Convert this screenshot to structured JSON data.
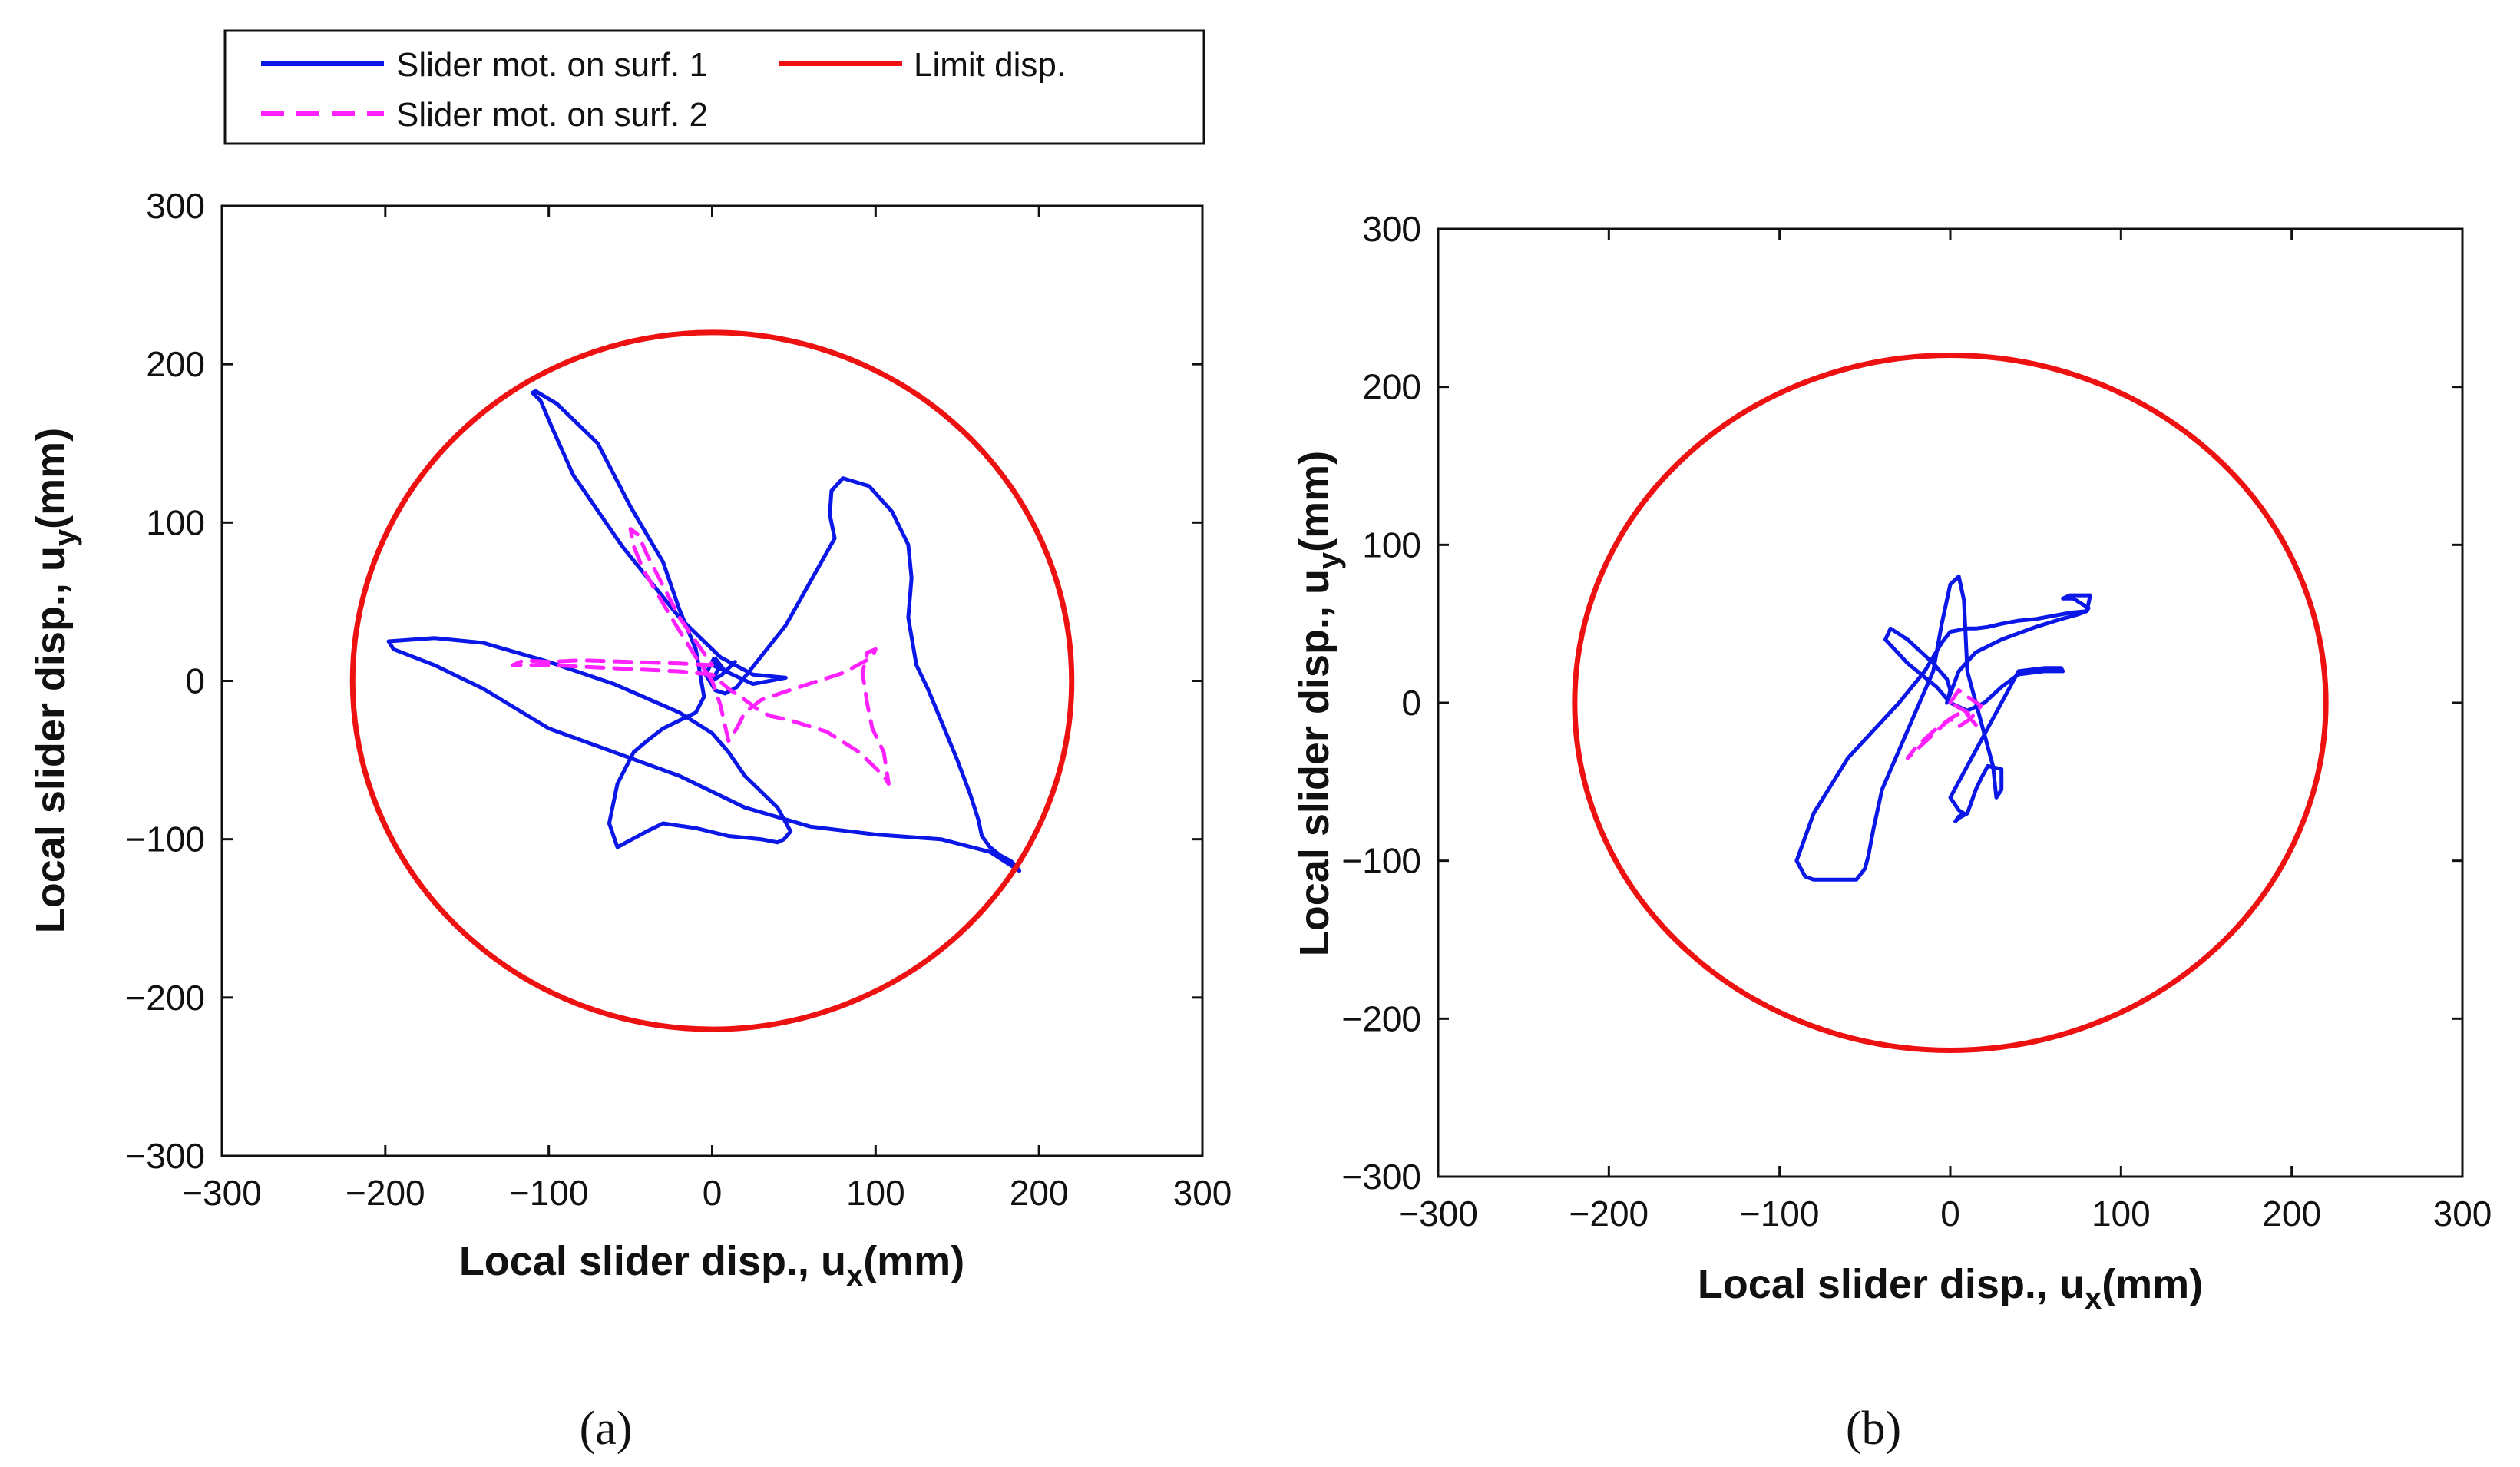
{
  "chart_data": [
    {
      "type": "line",
      "panel_label": "(a)",
      "xlabel": "Local slider disp., u",
      "xlabel_sub": "x",
      "xlabel_unit": "(mm)",
      "ylabel": "Local slider disp., u",
      "ylabel_sub": "y",
      "ylabel_unit": "(mm)",
      "xlim": [
        -300,
        300
      ],
      "ylim": [
        -300,
        300
      ],
      "xticks": [
        -300,
        -200,
        -100,
        0,
        100,
        200,
        300
      ],
      "yticks": [
        -300,
        -200,
        -100,
        0,
        100,
        200,
        300
      ],
      "xtick_labels": [
        "−300",
        "−200",
        "−100",
        "0",
        "100",
        "200",
        "300"
      ],
      "ytick_labels": [
        "−300",
        "−200",
        "−100",
        "0",
        "100",
        "200",
        "300"
      ],
      "grid": false,
      "legend": {
        "placement": "top, above panel (a)",
        "entries": [
          "Slider mot. on surf. 1",
          "Limit disp.",
          "Slider mot. on surf. 2"
        ]
      },
      "series": [
        {
          "name": "Slider mot. on surf. 1",
          "color": "#0a17e6",
          "style": "solid",
          "x": [
            0,
            4,
            1,
            -4,
            2,
            8,
            15,
            45,
            75,
            72,
            73,
            80,
            96,
            110,
            120,
            122,
            120,
            125,
            132,
            140,
            150,
            158,
            163,
            165,
            170,
            176,
            183,
            186,
            188,
            185,
            170,
            140,
            100,
            60,
            20,
            -20,
            -60,
            -100,
            -140,
            -170,
            -195,
            -198,
            -170,
            -140,
            -100,
            -60,
            -20,
            0,
            10,
            20,
            40,
            48,
            44,
            40,
            30,
            10,
            -10,
            -30,
            -40,
            -58,
            -63,
            -58,
            -48,
            -40,
            -30,
            -20,
            -10,
            -5,
            -10,
            -20,
            -30,
            -50,
            -70,
            -95,
            -108,
            -110,
            -105,
            -98,
            -85,
            -55,
            -20,
            5,
            25,
            45,
            25,
            0,
            2,
            8,
            14,
            6,
            0
          ],
          "y": [
            0,
            8,
            14,
            4,
            -6,
            -8,
            -4,
            35,
            90,
            105,
            120,
            128,
            123,
            107,
            86,
            65,
            40,
            10,
            -5,
            -25,
            -50,
            -72,
            -88,
            -98,
            -105,
            -110,
            -114,
            -117,
            -120,
            -118,
            -108,
            -100,
            -97,
            -92,
            -80,
            -60,
            -45,
            -30,
            -5,
            10,
            20,
            25,
            27,
            24,
            12,
            -2,
            -20,
            -33,
            -45,
            -60,
            -80,
            -95,
            -100,
            -102,
            -100,
            -98,
            -93,
            -90,
            -95,
            -105,
            -90,
            -65,
            -45,
            -38,
            -30,
            -25,
            -20,
            -10,
            20,
            45,
            75,
            110,
            150,
            175,
            183,
            182,
            177,
            160,
            130,
            85,
            40,
            15,
            4,
            2,
            -2,
            10,
            14,
            6,
            12,
            4,
            0
          ]
        },
        {
          "name": "Slider mot. on surf. 2",
          "color": "#ff22ff",
          "style": "dashed",
          "x": [
            0,
            -10,
            -25,
            -42,
            -48,
            -50,
            -45,
            -40,
            -30,
            -20,
            -10,
            0,
            -20,
            -50,
            -80,
            -100,
            -115,
            -122,
            -100,
            -60,
            -20,
            0,
            10,
            20,
            28,
            35,
            48,
            70,
            90,
            100,
            105,
            108,
            105,
            98,
            95,
            92,
            95,
            100,
            98,
            80,
            50,
            30,
            20,
            15,
            10,
            5,
            0
          ],
          "y": [
            0,
            15,
            40,
            70,
            85,
            96,
            92,
            80,
            60,
            40,
            25,
            10,
            11,
            12,
            13,
            12,
            13,
            10,
            10,
            8,
            6,
            4,
            -5,
            -12,
            -18,
            -22,
            -25,
            -32,
            -45,
            -55,
            -60,
            -65,
            -45,
            -30,
            -15,
            5,
            18,
            20,
            15,
            5,
            -5,
            -12,
            -20,
            -30,
            -38,
            -15,
            0
          ]
        },
        {
          "name": "Limit disp.",
          "color": "#ee1111",
          "style": "solid",
          "radius": 220,
          "shape": "circle"
        }
      ]
    },
    {
      "type": "line",
      "panel_label": "(b)",
      "xlabel": "Local slider disp., u",
      "xlabel_sub": "x",
      "xlabel_unit": "(mm)",
      "ylabel": "Local slider disp., u",
      "ylabel_sub": "y",
      "ylabel_unit": "(mm)",
      "xlim": [
        -300,
        300
      ],
      "ylim": [
        -300,
        300
      ],
      "xticks": [
        -300,
        -200,
        -100,
        0,
        100,
        200,
        300
      ],
      "yticks": [
        -300,
        -200,
        -100,
        0,
        100,
        200,
        300
      ],
      "xtick_labels": [
        "−300",
        "−200",
        "−100",
        "0",
        "100",
        "200",
        "300"
      ],
      "ytick_labels": [
        "−300",
        "−200",
        "−100",
        "0",
        "100",
        "200",
        "300"
      ],
      "grid": false,
      "series": [
        {
          "name": "Slider mot. on surf. 1",
          "color": "#0a17e6",
          "style": "solid",
          "x": [
            0,
            -8,
            -25,
            -38,
            -35,
            -25,
            -10,
            -2,
            0,
            -2,
            5,
            15,
            30,
            50,
            65,
            75,
            80,
            81,
            78,
            72,
            66,
            70,
            82,
            80,
            70,
            60,
            50,
            40,
            30,
            22,
            15,
            10,
            5,
            0,
            -5,
            -15,
            -30,
            -60,
            -80,
            -90,
            -85,
            -80,
            -70,
            -55,
            -50,
            -48,
            -45,
            -40,
            -30,
            -20,
            -10,
            -5,
            0,
            5,
            8,
            10,
            20,
            25,
            27,
            30,
            30,
            22,
            18,
            15,
            10,
            5,
            3,
            5,
            8,
            5,
            0,
            40,
            55,
            65,
            66,
            62,
            55,
            40,
            30,
            20,
            10,
            0
          ],
          "y": [
            0,
            10,
            25,
            40,
            47,
            40,
            25,
            15,
            8,
            0,
            20,
            32,
            40,
            48,
            53,
            56,
            58,
            60,
            62,
            66,
            66,
            68,
            68,
            58,
            57,
            55,
            53,
            52,
            50,
            48,
            47,
            47,
            46,
            45,
            38,
            20,
            0,
            -35,
            -70,
            -100,
            -110,
            -112,
            -112,
            -112,
            -105,
            -97,
            -80,
            -55,
            -30,
            -5,
            20,
            50,
            75,
            80,
            65,
            20,
            -20,
            -40,
            -60,
            -55,
            -42,
            -40,
            -48,
            -55,
            -70,
            -73,
            -75,
            -72,
            -70,
            -68,
            -60,
            20,
            22,
            22,
            20,
            20,
            20,
            18,
            10,
            0,
            -5,
            0
          ]
        },
        {
          "name": "Slider mot. on surf. 2",
          "color": "#ff22ff",
          "style": "dashed",
          "x": [
            0,
            5,
            10,
            18,
            12,
            5,
            0,
            -8,
            -18,
            -25,
            -20,
            -10,
            0,
            8,
            15,
            10,
            0
          ],
          "y": [
            0,
            8,
            4,
            -2,
            -10,
            -15,
            -10,
            -18,
            -28,
            -35,
            -28,
            -18,
            -10,
            -5,
            -14,
            -6,
            0
          ]
        },
        {
          "name": "Limit disp.",
          "color": "#ee1111",
          "style": "solid",
          "radius": 220,
          "shape": "circle"
        }
      ]
    }
  ]
}
